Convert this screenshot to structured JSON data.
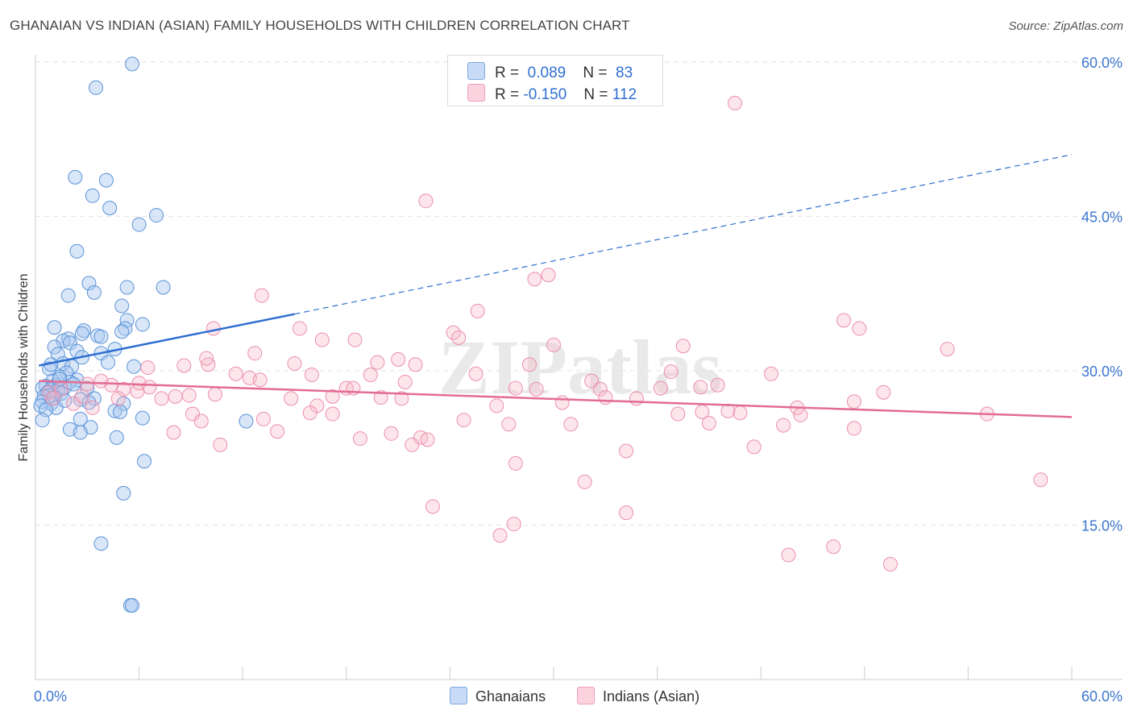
{
  "title": "GHANAIAN VS INDIAN (ASIAN) FAMILY HOUSEHOLDS WITH CHILDREN CORRELATION CHART",
  "source": "Source: ZipAtlas.com",
  "watermark": "ZIPatlas",
  "legend": {
    "r_label": "R =",
    "n_label": "N =",
    "rows": [
      {
        "r": "0.089",
        "n": "83",
        "color": "#a9c8f0"
      },
      {
        "r": "-0.150",
        "n": "112",
        "color": "#f5b6c8"
      }
    ]
  },
  "colors": {
    "blue": "#5b93d9",
    "blue_line": "#2f6fd0",
    "pink": "#ec8fae",
    "pink_line": "#e36c94",
    "axis_text": "#3b76d0"
  },
  "chart_data": {
    "type": "scatter",
    "title": "GHANAIAN VS INDIAN (ASIAN) FAMILY HOUSEHOLDS WITH CHILDREN CORRELATION CHART",
    "xlabel": "",
    "ylabel": "Family Households with Children",
    "xlim": [
      0,
      60
    ],
    "ylim": [
      0,
      63
    ],
    "x_tick_labels": [
      "0.0%",
      "60.0%"
    ],
    "y_ticks": [
      15,
      30,
      45,
      60
    ],
    "y_tick_labels": [
      "15.0%",
      "30.0%",
      "45.0%",
      "60.0%"
    ],
    "series": [
      {
        "name": "Ghanaians",
        "r": 0.089,
        "n": 83,
        "trend": {
          "x0": 0.2,
          "y0": 30.5,
          "x1": 15,
          "y1": 35.5,
          "dash_x1": 60,
          "dash_y1": 51
        },
        "points": [
          [
            5.6,
            59.8
          ],
          [
            3.5,
            57.5
          ],
          [
            2.3,
            48.8
          ],
          [
            4.1,
            48.5
          ],
          [
            3.3,
            47
          ],
          [
            4.3,
            45.8
          ],
          [
            7.0,
            45.1
          ],
          [
            6.0,
            44.2
          ],
          [
            2.4,
            41.6
          ],
          [
            3.1,
            38.5
          ],
          [
            5.3,
            38.1
          ],
          [
            7.4,
            38.1
          ],
          [
            3.4,
            37.6
          ],
          [
            1.9,
            37.3
          ],
          [
            5.0,
            36.3
          ],
          [
            5.3,
            34.9
          ],
          [
            6.2,
            34.5
          ],
          [
            1.1,
            34.2
          ],
          [
            2.8,
            33.9
          ],
          [
            5.2,
            34.1
          ],
          [
            5.0,
            33.8
          ],
          [
            3.6,
            33.4
          ],
          [
            3.8,
            33.3
          ],
          [
            2.7,
            33.6
          ],
          [
            1.9,
            33.1
          ],
          [
            1.6,
            32.9
          ],
          [
            2.0,
            32.7
          ],
          [
            1.1,
            32.3
          ],
          [
            4.6,
            32.1
          ],
          [
            2.4,
            31.9
          ],
          [
            3.8,
            31.7
          ],
          [
            1.3,
            31.6
          ],
          [
            2.7,
            31.3
          ],
          [
            4.2,
            30.8
          ],
          [
            1.6,
            30.7
          ],
          [
            2.1,
            30.4
          ],
          [
            5.7,
            30.4
          ],
          [
            0.8,
            30.2
          ],
          [
            1.8,
            29.8
          ],
          [
            1.4,
            29.4
          ],
          [
            2.4,
            29.1
          ],
          [
            1.0,
            29.0
          ],
          [
            2.0,
            28.9
          ],
          [
            1.2,
            28.6
          ],
          [
            0.6,
            28.5
          ],
          [
            1.7,
            28.4
          ],
          [
            0.9,
            28.2
          ],
          [
            1.3,
            28.1
          ],
          [
            0.4,
            28.3
          ],
          [
            3.0,
            28.3
          ],
          [
            0.7,
            27.9
          ],
          [
            1.5,
            27.8
          ],
          [
            0.8,
            27.6
          ],
          [
            0.5,
            27.5
          ],
          [
            1.1,
            27.4
          ],
          [
            2.6,
            27.2
          ],
          [
            3.4,
            27.3
          ],
          [
            0.4,
            27.0
          ],
          [
            0.9,
            26.8
          ],
          [
            0.3,
            26.6
          ],
          [
            1.2,
            26.4
          ],
          [
            0.6,
            26.2
          ],
          [
            5.1,
            26.8
          ],
          [
            4.6,
            26.1
          ],
          [
            4.9,
            26.0
          ],
          [
            6.2,
            25.4
          ],
          [
            2.6,
            25.3
          ],
          [
            0.4,
            25.2
          ],
          [
            3.2,
            24.5
          ],
          [
            2.0,
            24.3
          ],
          [
            2.6,
            24.0
          ],
          [
            4.7,
            23.5
          ],
          [
            12.2,
            25.1
          ],
          [
            6.3,
            21.2
          ],
          [
            5.1,
            18.1
          ],
          [
            3.8,
            13.2
          ],
          [
            5.5,
            7.2
          ],
          [
            5.6,
            7.2
          ],
          [
            1.4,
            29.2
          ],
          [
            2.2,
            28.7
          ],
          [
            1.7,
            27.1
          ],
          [
            3.1,
            26.9
          ],
          [
            0.9,
            30.6
          ]
        ]
      },
      {
        "name": "Indians (Asian)",
        "r": -0.15,
        "n": 112,
        "trend": {
          "x0": 0.2,
          "y0": 29.0,
          "x1": 60,
          "y1": 25.5
        },
        "points": [
          [
            40.5,
            56.0
          ],
          [
            22.6,
            46.5
          ],
          [
            29.7,
            39.3
          ],
          [
            28.9,
            38.9
          ],
          [
            13.1,
            37.3
          ],
          [
            25.6,
            35.8
          ],
          [
            46.8,
            34.9
          ],
          [
            47.7,
            34.1
          ],
          [
            10.3,
            34.1
          ],
          [
            15.3,
            34.1
          ],
          [
            24.2,
            33.7
          ],
          [
            24.5,
            33.2
          ],
          [
            16.6,
            33.0
          ],
          [
            18.5,
            33.0
          ],
          [
            30.0,
            32.5
          ],
          [
            37.5,
            32.4
          ],
          [
            52.8,
            32.1
          ],
          [
            12.7,
            31.7
          ],
          [
            21.0,
            31.1
          ],
          [
            19.8,
            30.8
          ],
          [
            10.0,
            30.6
          ],
          [
            8.6,
            30.5
          ],
          [
            15.0,
            30.7
          ],
          [
            22.0,
            30.6
          ],
          [
            28.6,
            30.6
          ],
          [
            6.5,
            30.3
          ],
          [
            36.8,
            29.9
          ],
          [
            25.5,
            29.7
          ],
          [
            11.6,
            29.7
          ],
          [
            16.0,
            29.6
          ],
          [
            19.4,
            29.6
          ],
          [
            42.6,
            29.7
          ],
          [
            12.4,
            29.3
          ],
          [
            13.0,
            29.1
          ],
          [
            32.2,
            29.0
          ],
          [
            21.4,
            28.9
          ],
          [
            4.4,
            28.6
          ],
          [
            6.6,
            28.4
          ],
          [
            5.1,
            28.2
          ],
          [
            5.9,
            28.0
          ],
          [
            18.0,
            28.3
          ],
          [
            18.4,
            28.3
          ],
          [
            27.8,
            28.3
          ],
          [
            29.0,
            28.2
          ],
          [
            32.7,
            28.2
          ],
          [
            36.2,
            28.3
          ],
          [
            38.5,
            28.4
          ],
          [
            39.5,
            28.6
          ],
          [
            49.1,
            27.9
          ],
          [
            10.4,
            27.7
          ],
          [
            8.1,
            27.5
          ],
          [
            8.9,
            27.6
          ],
          [
            4.8,
            27.3
          ],
          [
            7.3,
            27.3
          ],
          [
            14.8,
            27.3
          ],
          [
            17.2,
            27.5
          ],
          [
            21.2,
            27.3
          ],
          [
            33.0,
            27.4
          ],
          [
            34.8,
            27.3
          ],
          [
            47.4,
            27.0
          ],
          [
            16.3,
            26.6
          ],
          [
            26.7,
            26.6
          ],
          [
            44.1,
            26.4
          ],
          [
            3.3,
            26.4
          ],
          [
            9.1,
            25.8
          ],
          [
            15.9,
            25.9
          ],
          [
            17.2,
            25.8
          ],
          [
            37.2,
            25.8
          ],
          [
            38.6,
            26.0
          ],
          [
            40.1,
            26.1
          ],
          [
            40.8,
            25.9
          ],
          [
            44.3,
            25.7
          ],
          [
            55.1,
            25.8
          ],
          [
            13.2,
            25.3
          ],
          [
            24.8,
            25.2
          ],
          [
            9.6,
            25.1
          ],
          [
            27.4,
            24.8
          ],
          [
            31.0,
            24.8
          ],
          [
            39.0,
            24.9
          ],
          [
            43.3,
            24.7
          ],
          [
            47.4,
            24.4
          ],
          [
            14.0,
            24.1
          ],
          [
            8.0,
            24.0
          ],
          [
            20.6,
            23.9
          ],
          [
            22.3,
            23.5
          ],
          [
            22.7,
            23.3
          ],
          [
            18.8,
            23.4
          ],
          [
            21.8,
            22.8
          ],
          [
            10.7,
            22.8
          ],
          [
            34.2,
            22.2
          ],
          [
            41.6,
            22.6
          ],
          [
            27.8,
            21.0
          ],
          [
            31.8,
            19.2
          ],
          [
            58.2,
            19.4
          ],
          [
            23.0,
            16.8
          ],
          [
            34.2,
            16.2
          ],
          [
            27.7,
            15.1
          ],
          [
            26.9,
            14.0
          ],
          [
            46.2,
            12.9
          ],
          [
            43.6,
            12.1
          ],
          [
            49.5,
            11.2
          ],
          [
            3.0,
            28.7
          ],
          [
            1.5,
            28.2
          ],
          [
            0.8,
            27.9
          ],
          [
            1.0,
            27.3
          ],
          [
            2.2,
            26.8
          ],
          [
            3.8,
            29.0
          ],
          [
            6.0,
            28.8
          ],
          [
            2.7,
            27.5
          ],
          [
            9.9,
            31.2
          ],
          [
            20.0,
            27.4
          ],
          [
            30.5,
            26.9
          ]
        ]
      }
    ]
  }
}
